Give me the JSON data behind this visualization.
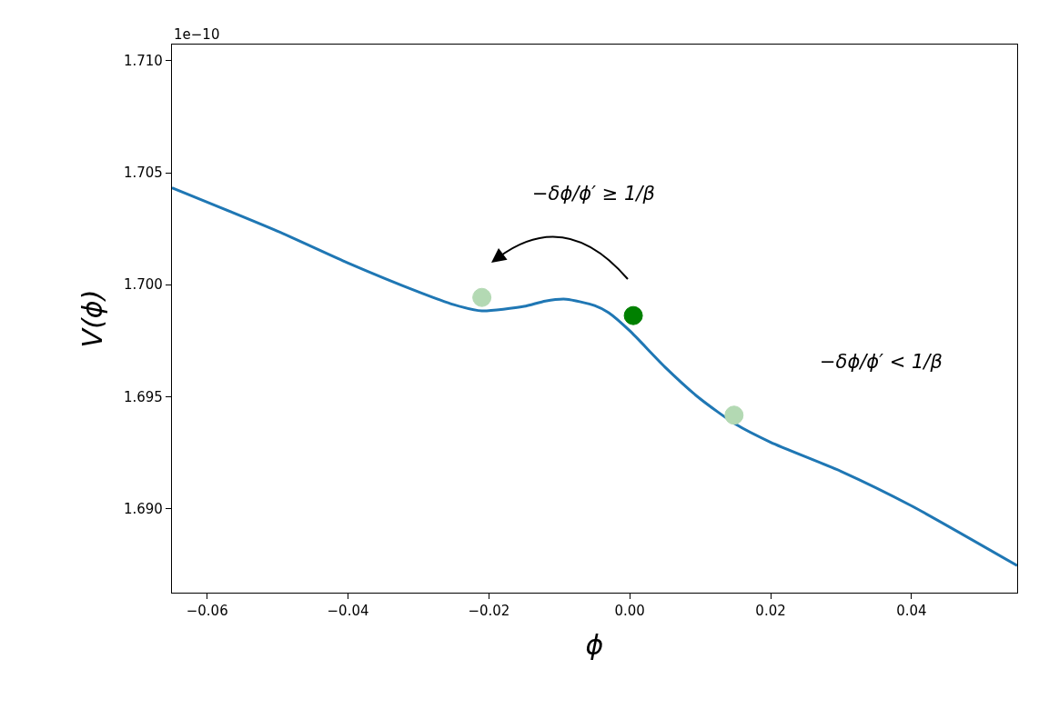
{
  "chart_data": {
    "type": "line",
    "xlabel": "ϕ",
    "ylabel": "V(ϕ)",
    "xlim": [
      -0.065,
      0.055
    ],
    "ylim": [
      1.68624,
      1.71073
    ],
    "xticks": [
      {
        "value": -0.06,
        "label": "−0.06"
      },
      {
        "value": -0.04,
        "label": "−0.04"
      },
      {
        "value": -0.02,
        "label": "−0.02"
      },
      {
        "value": 0.0,
        "label": "0.00"
      },
      {
        "value": 0.02,
        "label": "0.02"
      },
      {
        "value": 0.04,
        "label": "0.04"
      }
    ],
    "yticks": [
      {
        "value": 1.69,
        "label": "1.690"
      },
      {
        "value": 1.695,
        "label": "1.695"
      },
      {
        "value": 1.7,
        "label": "1.700"
      },
      {
        "value": 1.705,
        "label": "1.705"
      },
      {
        "value": 1.71,
        "label": "1.710"
      }
    ],
    "annotations": [
      "1e−10",
      "−δϕ/ϕ′ ≥ 1/β",
      "−δϕ/ϕ′ < 1/β"
    ],
    "series": [
      {
        "color": "#1f77b4",
        "marker": "none",
        "x": [
          -0.065,
          -0.05,
          -0.04,
          -0.03,
          -0.025,
          -0.021,
          -0.015,
          -0.012,
          -0.009,
          -0.005,
          -0.003,
          0.0,
          0.005,
          0.01,
          0.015,
          0.02,
          0.03,
          0.04,
          0.055
        ],
        "values": [
          1.70433,
          1.70239,
          1.70097,
          1.69968,
          1.69911,
          1.69883,
          1.69903,
          1.69927,
          1.69935,
          1.69907,
          1.69875,
          1.69794,
          1.69632,
          1.6949,
          1.69377,
          1.69296,
          1.69166,
          1.69012,
          1.68745
        ]
      },
      {
        "type": "scatter",
        "marker": "circle",
        "x": [
          -0.021,
          0.0005,
          0.0148
        ],
        "values": [
          1.69943,
          1.69862,
          1.69417
        ],
        "colors": [
          "#b3d9b3",
          "#008000",
          "#b3d9b3"
        ]
      }
    ]
  }
}
